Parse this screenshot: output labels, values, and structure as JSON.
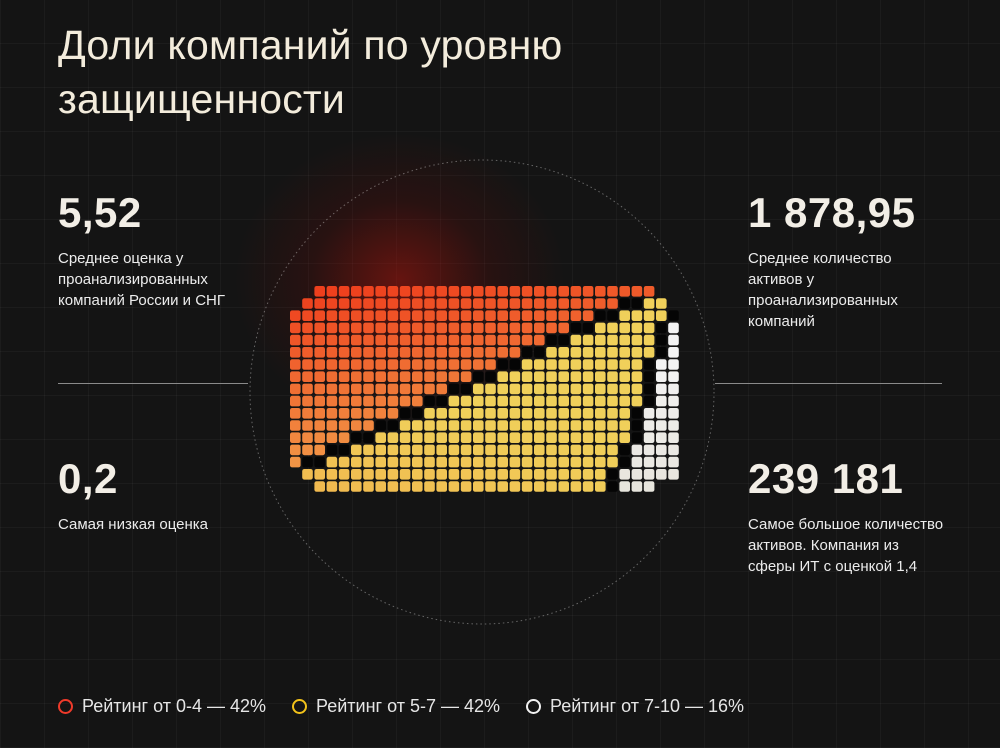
{
  "title": "Доли компаний по уровню защищенности",
  "stats": {
    "avg_score": {
      "value": "5,52",
      "label": "Среднее оценка у проанализированных компаний России и СНГ"
    },
    "min_score": {
      "value": "0,2",
      "label": "Самая низкая оценка"
    },
    "avg_assets": {
      "value": "1 878,95",
      "label": "Среднее количество активов у проанализированных компаний"
    },
    "max_assets": {
      "value": "239 181",
      "label": "Самое большое количество активов. Компания из сферы ИТ с оценкой 1,4"
    }
  },
  "chart_data": {
    "type": "pie",
    "title": "Доли компаний по уровню защищенности",
    "categories": [
      "Рейтинг от 0-4",
      "Рейтинг от 5-7",
      "Рейтинг от 7-10"
    ],
    "values": [
      42,
      42,
      16
    ],
    "unit": "%",
    "colors": [
      "#ef4420",
      "#f0cf55",
      "#eeeeee"
    ],
    "legend_position": "bottom"
  },
  "legend": [
    {
      "label": "Рейтинг от 0-4 — 42%",
      "color": "#ef3a2a"
    },
    {
      "label": "Рейтинг от 5-7 — 42%",
      "color": "#f2c21a"
    },
    {
      "label": "Рейтинг от 7-10 — 16%",
      "color": "#f2f2f2"
    }
  ]
}
